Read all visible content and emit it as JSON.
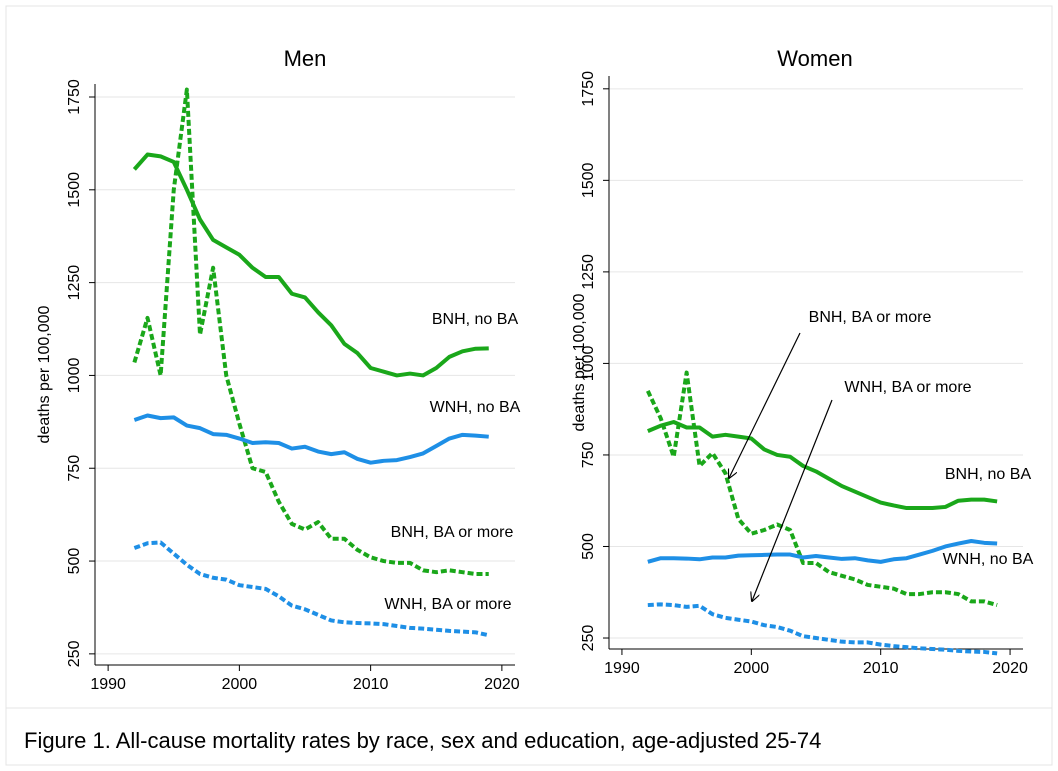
{
  "caption": "Figure 1. All-cause mortality rates by race, sex and education, age-adjusted 25-74",
  "chart_data": [
    {
      "type": "line",
      "title": "Men",
      "ylabel": "deaths per 100,000",
      "x": [
        1992,
        1993,
        1994,
        1995,
        1996,
        1997,
        1998,
        1999,
        2000,
        2001,
        2002,
        2003,
        2004,
        2005,
        2006,
        2007,
        2008,
        2009,
        2010,
        2011,
        2012,
        2013,
        2014,
        2015,
        2016,
        2017,
        2018,
        2019
      ],
      "xlim": [
        1989,
        2021
      ],
      "xticks": [
        1990,
        2000,
        2010,
        2020
      ],
      "ylim": [
        220,
        1785
      ],
      "yticks": [
        250,
        500,
        750,
        1000,
        1250,
        1500,
        1750
      ],
      "grid": true,
      "series": [
        {
          "name": "BNH, no BA",
          "color": "#1aa71a",
          "style": "solid",
          "values": [
            1555,
            1595,
            1590,
            1575,
            1500,
            1420,
            1365,
            1345,
            1325,
            1290,
            1265,
            1265,
            1220,
            1210,
            1170,
            1135,
            1085,
            1060,
            1020,
            1010,
            1000,
            1005,
            1000,
            1020,
            1050,
            1065,
            1072,
            1073
          ]
        },
        {
          "name": "BNH, BA or more",
          "color": "#1aa71a",
          "style": "dashed",
          "values": [
            1035,
            1155,
            1000,
            1500,
            1770,
            1110,
            1290,
            1000,
            870,
            750,
            740,
            660,
            600,
            585,
            605,
            560,
            560,
            530,
            510,
            500,
            495,
            495,
            475,
            470,
            475,
            470,
            465,
            465
          ]
        },
        {
          "name": "WNH, no BA",
          "color": "#1e8fe6",
          "style": "solid",
          "values": [
            880,
            892,
            885,
            887,
            865,
            858,
            842,
            840,
            830,
            818,
            820,
            818,
            803,
            808,
            795,
            788,
            793,
            775,
            765,
            770,
            772,
            780,
            790,
            810,
            830,
            840,
            838,
            835
          ]
        },
        {
          "name": "WNH, BA or more",
          "color": "#1e8fe6",
          "style": "dashed",
          "values": [
            535,
            548,
            550,
            520,
            490,
            465,
            455,
            450,
            435,
            430,
            425,
            405,
            380,
            370,
            355,
            340,
            335,
            333,
            332,
            330,
            325,
            320,
            318,
            315,
            312,
            310,
            308,
            300
          ]
        }
      ]
    },
    {
      "type": "line",
      "title": "Women",
      "ylabel": "deaths per 100,000",
      "x": [
        1992,
        1993,
        1994,
        1995,
        1996,
        1997,
        1998,
        1999,
        2000,
        2001,
        2002,
        2003,
        2004,
        2005,
        2006,
        2007,
        2008,
        2009,
        2010,
        2011,
        2012,
        2013,
        2014,
        2015,
        2016,
        2017,
        2018,
        2019
      ],
      "xlim": [
        1989,
        2021
      ],
      "xticks": [
        1990,
        2000,
        2010,
        2020
      ],
      "ylim": [
        220,
        1785
      ],
      "yticks": [
        250,
        500,
        750,
        1000,
        1250,
        1500,
        1750
      ],
      "grid": true,
      "series": [
        {
          "name": "BNH, no BA",
          "color": "#1aa71a",
          "style": "solid",
          "values": [
            815,
            830,
            840,
            825,
            825,
            800,
            805,
            800,
            795,
            765,
            750,
            745,
            720,
            705,
            685,
            665,
            650,
            635,
            620,
            612,
            605,
            605,
            605,
            608,
            625,
            628,
            628,
            623
          ]
        },
        {
          "name": "BNH, BA or more",
          "color": "#1aa71a",
          "style": "dashed",
          "values": [
            925,
            850,
            745,
            975,
            720,
            755,
            700,
            575,
            535,
            545,
            560,
            545,
            455,
            455,
            430,
            420,
            410,
            395,
            390,
            385,
            370,
            370,
            375,
            375,
            370,
            350,
            350,
            340
          ]
        },
        {
          "name": "WNH, no BA",
          "color": "#1e8fe6",
          "style": "solid",
          "values": [
            458,
            468,
            468,
            467,
            465,
            470,
            470,
            475,
            476,
            477,
            478,
            478,
            470,
            474,
            470,
            466,
            468,
            462,
            458,
            465,
            468,
            478,
            488,
            500,
            508,
            515,
            510,
            508
          ]
        },
        {
          "name": "WNH, BA or more",
          "color": "#1e8fe6",
          "style": "dashed",
          "values": [
            340,
            342,
            340,
            335,
            338,
            315,
            305,
            300,
            295,
            285,
            280,
            270,
            255,
            250,
            245,
            240,
            238,
            238,
            232,
            228,
            225,
            222,
            220,
            218,
            215,
            213,
            212,
            208
          ]
        }
      ]
    }
  ]
}
